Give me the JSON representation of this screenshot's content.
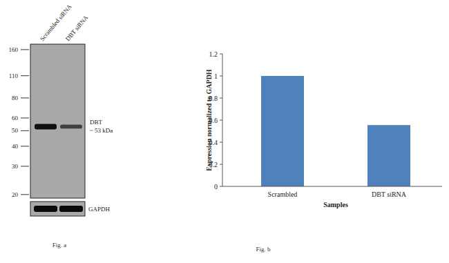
{
  "blot": {
    "caption": "Fig. a",
    "lanes": [
      "Scrambled siRNA",
      "DBT siRNA"
    ],
    "marker_range": [
      19,
      173
    ],
    "markers": [
      160,
      110,
      80,
      60,
      50,
      40,
      30,
      20
    ],
    "band": {
      "label": "DBT",
      "size_label": "~ 53 kDa",
      "kda": 53,
      "intensity": [
        1,
        0.56
      ]
    },
    "loading_control": {
      "label": "GAPDH",
      "intensity": [
        1,
        1
      ]
    }
  },
  "chart_data": {
    "type": "bar",
    "annotations": [
      "Fig. b"
    ],
    "x_label": "Samples",
    "y_label": "Expression  normalized to GAPDH",
    "categories": [
      "Scrambled",
      "DBT siRNA"
    ],
    "values": [
      1,
      0.555
    ],
    "color": "#4f81bd",
    "ylim": [
      0,
      1.2
    ],
    "yticks": [
      0,
      0.2,
      0.4,
      0.6,
      0.8,
      1,
      1.2
    ],
    "grid": false
  }
}
